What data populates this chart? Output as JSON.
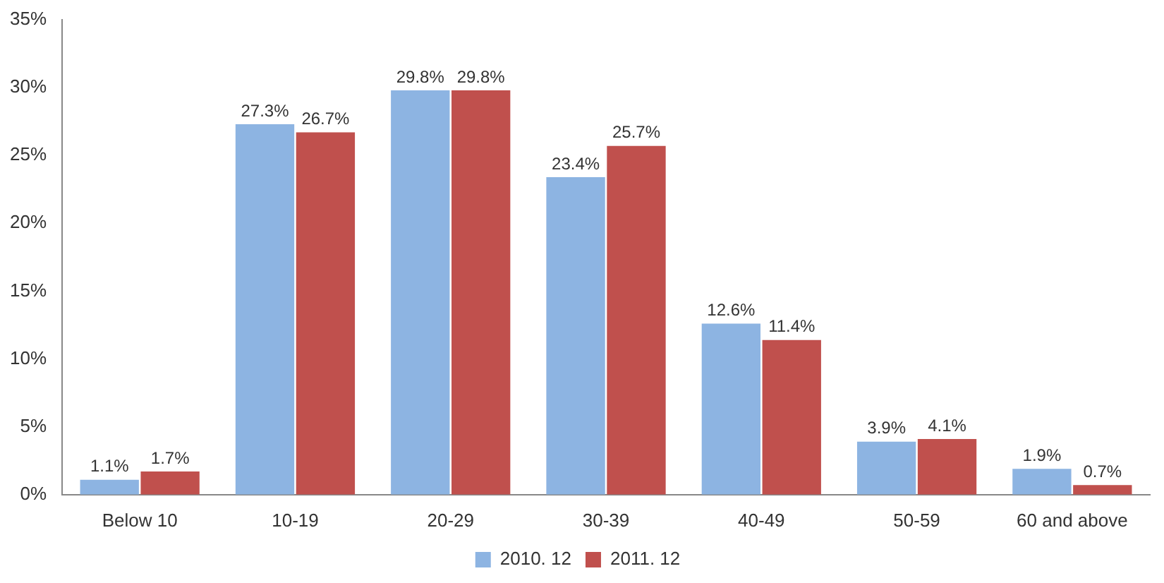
{
  "chart_data": {
    "type": "bar",
    "categories": [
      "Below 10",
      "10-19",
      "20-29",
      "30-39",
      "40-49",
      "50-59",
      "60 and above"
    ],
    "series": [
      {
        "name": "2010. 12",
        "color": "#8db4e2",
        "values": [
          1.1,
          27.3,
          29.8,
          23.4,
          12.6,
          3.9,
          1.9
        ],
        "value_labels": [
          "1.1%",
          "27.3%",
          "29.8%",
          "23.4%",
          "12.6%",
          "3.9%",
          "1.9%"
        ]
      },
      {
        "name": "2011. 12",
        "color": "#c0504d",
        "values": [
          1.7,
          26.7,
          29.8,
          25.7,
          11.4,
          4.1,
          0.7
        ],
        "value_labels": [
          "1.7%",
          "26.7%",
          "29.8%",
          "25.7%",
          "11.4%",
          "4.1%",
          "0.7%"
        ]
      }
    ],
    "ylim": [
      0,
      35
    ],
    "yticks": [
      {
        "value": 0,
        "label": "0%"
      },
      {
        "value": 5,
        "label": "5%"
      },
      {
        "value": 10,
        "label": "10%"
      },
      {
        "value": 15,
        "label": "15%"
      },
      {
        "value": 20,
        "label": "20%"
      },
      {
        "value": 25,
        "label": "25%"
      },
      {
        "value": 30,
        "label": "30%"
      },
      {
        "value": 35,
        "label": "35%"
      }
    ],
    "grid": false,
    "legend": "bottom"
  }
}
